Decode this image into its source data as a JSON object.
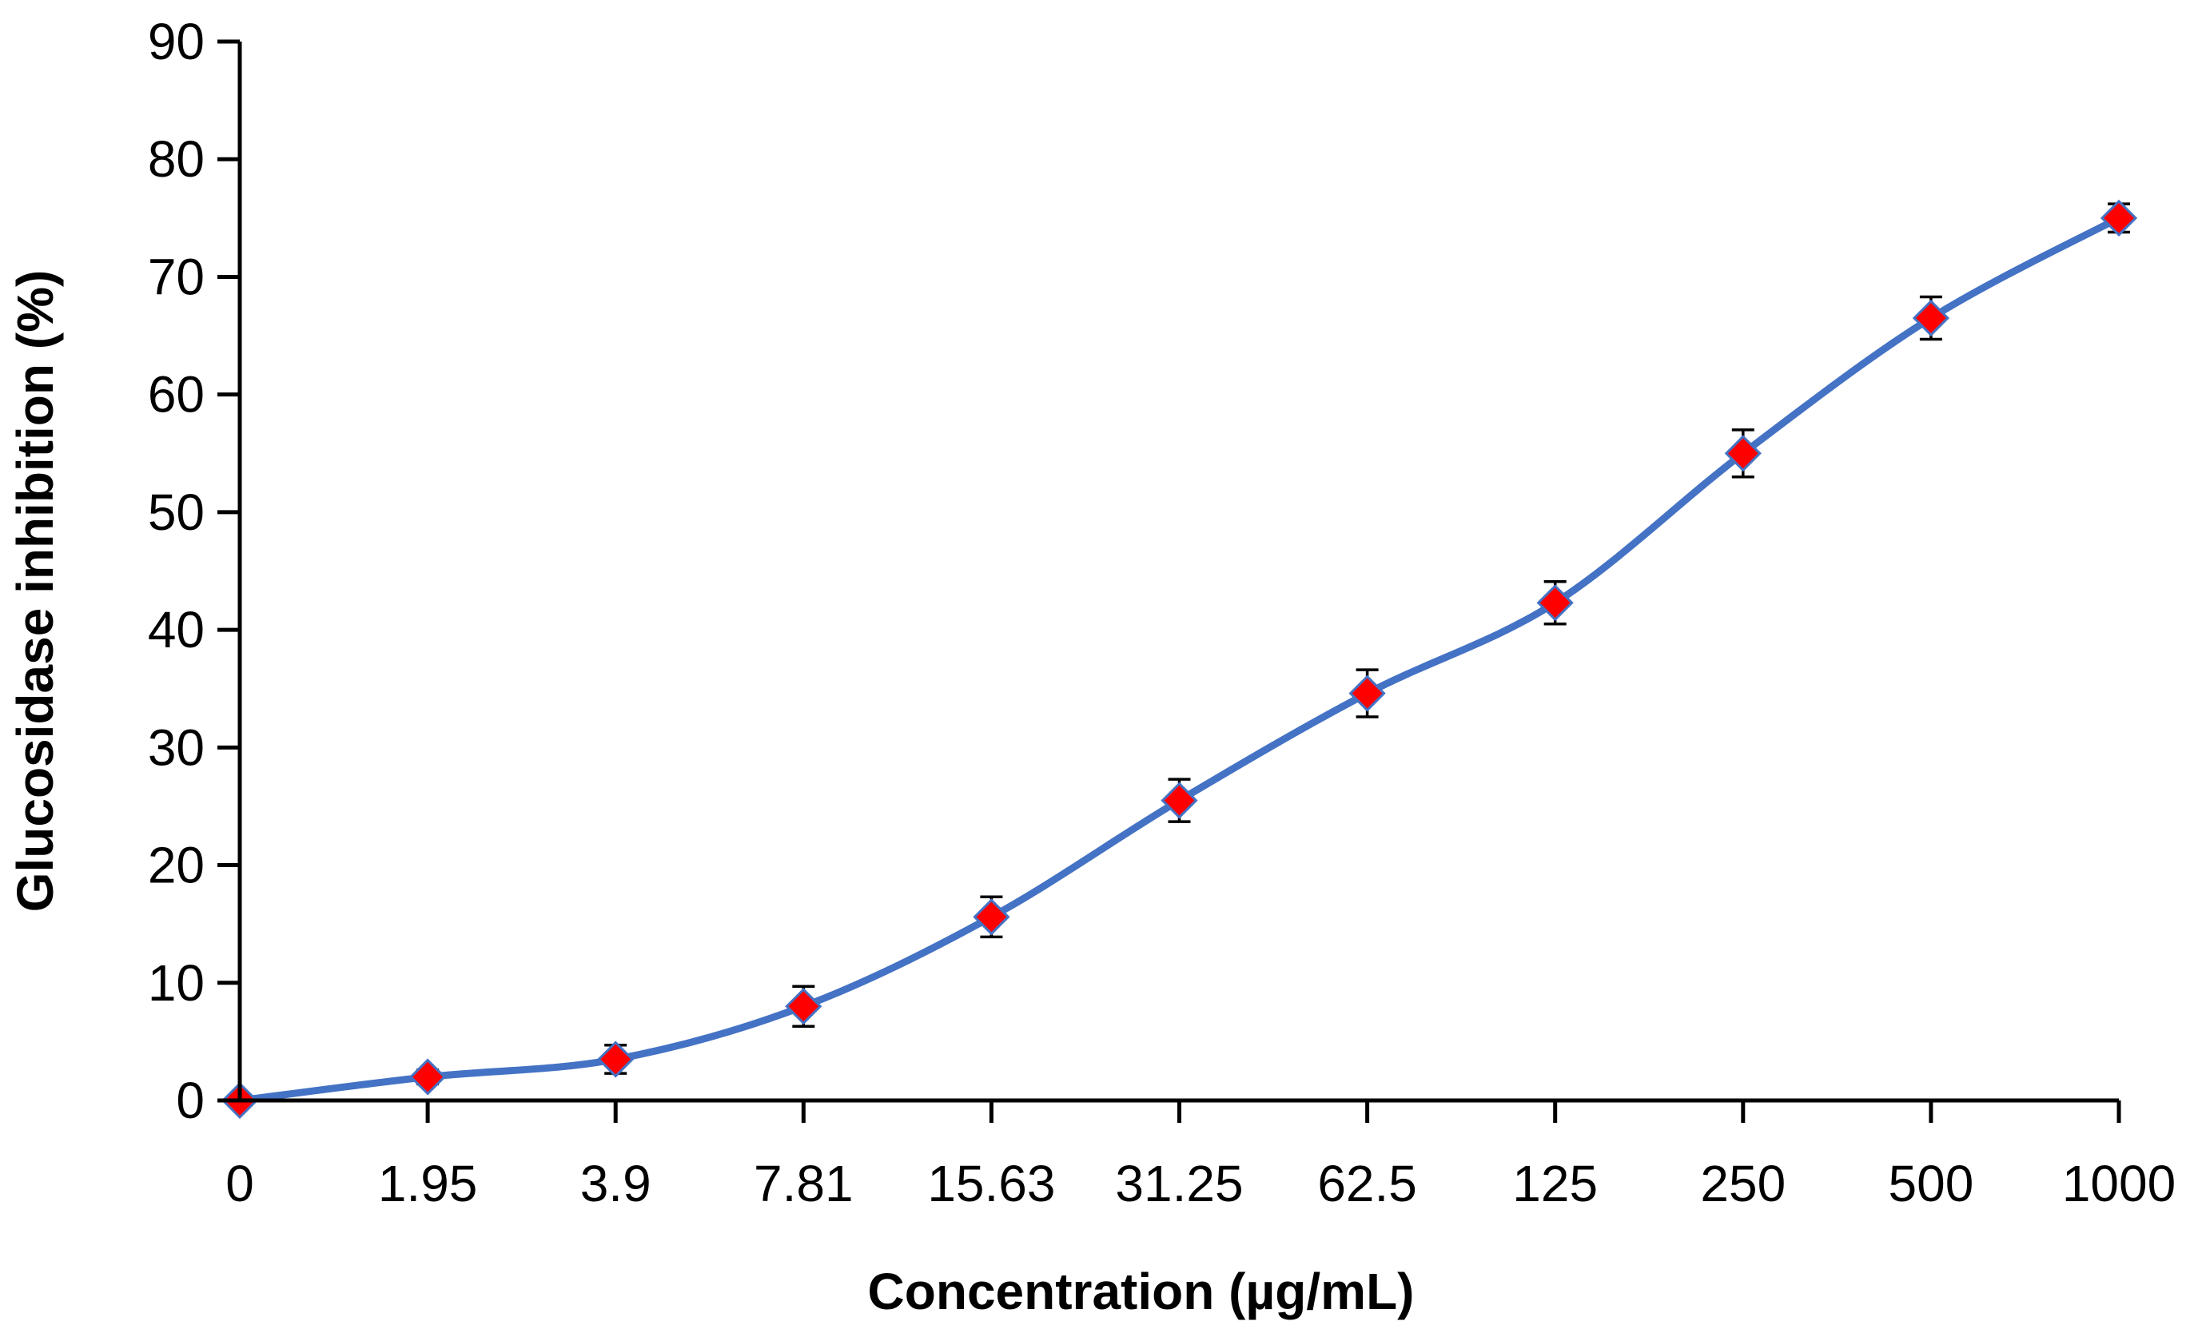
{
  "chart_data": {
    "type": "line",
    "title": "",
    "xlabel": "Concentration (µg/mL)",
    "ylabel": "Glucosidase  inhibition (%)",
    "categories": [
      "0",
      "1.95",
      "3.9",
      "7.81",
      "15.63",
      "31.25",
      "62.5",
      "125",
      "250",
      "500",
      "1000"
    ],
    "series": [
      {
        "name": "Glucosidase inhibition",
        "values": [
          0,
          2,
          3.5,
          8,
          15.6,
          25.5,
          34.6,
          42.3,
          55,
          66.5,
          75
        ],
        "errors": [
          0,
          0.6,
          1.2,
          1.7,
          1.7,
          1.8,
          2.0,
          1.8,
          2.0,
          1.8,
          1.2
        ],
        "line_color": "#4472C4",
        "marker_color": "#FF0000"
      }
    ],
    "ylim": [
      0,
      90
    ],
    "yticks": [
      "0",
      "10",
      "20",
      "30",
      "40",
      "50",
      "60",
      "70",
      "80",
      "90"
    ],
    "grid": false,
    "legend": "none"
  }
}
